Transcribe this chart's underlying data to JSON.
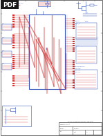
{
  "bg_color": "#ffffff",
  "page_bg": "#ffffff",
  "pdf_badge_bg": "#1a1a1a",
  "pdf_text_color": "#ffffff",
  "border_color": "#555555",
  "blue": "#3355bb",
  "red": "#cc3333",
  "dark_blue": "#223399",
  "light_blue_fill": "#ddeeff",
  "gray": "#888888",
  "title_block_border": "#444444",
  "stamp_red": "#cc2222",
  "mid_gray": "#aaaaaa",
  "figsize": [
    1.49,
    1.98
  ],
  "dpi": 100
}
